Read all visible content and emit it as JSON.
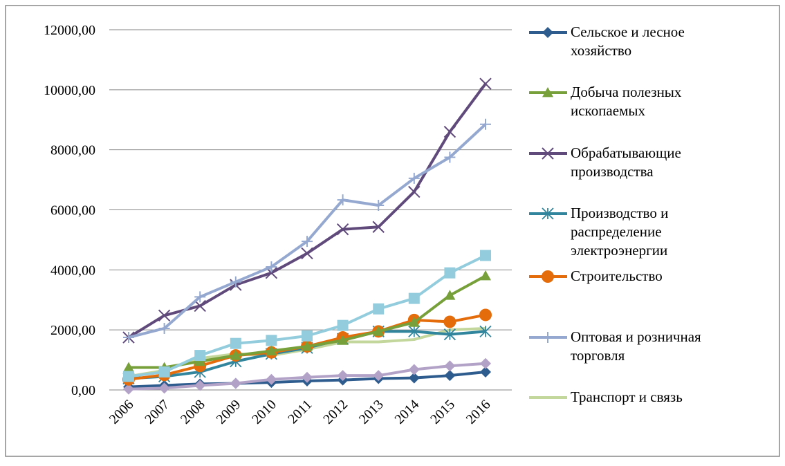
{
  "chart_data": {
    "type": "line",
    "categories": [
      "2006",
      "2007",
      "2008",
      "2009",
      "2010",
      "2011",
      "2012",
      "2013",
      "2014",
      "2015",
      "2016"
    ],
    "ylim": [
      0,
      12000
    ],
    "yticks": [
      {
        "value": 0,
        "label": "0,00"
      },
      {
        "value": 2000,
        "label": "2000,00"
      },
      {
        "value": 4000,
        "label": "4000,00"
      },
      {
        "value": 6000,
        "label": "6000,00"
      },
      {
        "value": 8000,
        "label": "8000,00"
      },
      {
        "value": 10000,
        "label": "10000,00"
      },
      {
        "value": 12000,
        "label": "12000,00"
      }
    ],
    "grid": true,
    "legend": "right",
    "series": [
      {
        "name": "Сельское и лесное хозяйство",
        "color": "#2e5c8e",
        "marker": "diamond",
        "values": [
          100,
          150,
          200,
          220,
          250,
          300,
          330,
          380,
          400,
          480,
          600
        ]
      },
      {
        "name": "Добыча полезных ископаемых",
        "color": "#77a03a",
        "marker": "triangle",
        "values": [
          750,
          750,
          950,
          1150,
          1300,
          1450,
          1650,
          1950,
          2250,
          3150,
          3800
        ]
      },
      {
        "name": "Обрабатывающие производства",
        "color": "#604a7b",
        "marker": "x",
        "values": [
          1750,
          2480,
          2800,
          3500,
          3900,
          4550,
          5350,
          5430,
          6600,
          8600,
          10200
        ]
      },
      {
        "name": "Производство и распределение электроэнергии",
        "color": "#31859c",
        "marker": "star",
        "values": [
          380,
          450,
          600,
          950,
          1200,
          1400,
          1700,
          1950,
          1950,
          1850,
          1950
        ]
      },
      {
        "name": "Строительство",
        "color": "#e46c0a",
        "marker": "circle",
        "values": [
          350,
          500,
          800,
          1150,
          1250,
          1450,
          1750,
          1950,
          2330,
          2270,
          2500
        ]
      },
      {
        "name": "Оптовая и розничная торговля",
        "color": "#95a9d0",
        "marker": "plus",
        "values": [
          1750,
          2050,
          3100,
          3600,
          4100,
          4950,
          6330,
          6150,
          7050,
          7750,
          8850
        ]
      },
      {
        "name": "Транспорт и связь",
        "color": "#c3d69b",
        "marker": "none",
        "values": [
          450,
          650,
          1050,
          1200,
          1150,
          1350,
          1600,
          1600,
          1680,
          2000,
          2050
        ]
      },
      {
        "color": "#93cddd",
        "marker": "square",
        "values": [
          450,
          600,
          1150,
          1550,
          1650,
          1800,
          2150,
          2700,
          3050,
          3900,
          4480
        ]
      },
      {
        "color": "#b3a2c7",
        "marker": "diamond",
        "values": [
          30,
          60,
          150,
          220,
          350,
          420,
          480,
          480,
          680,
          800,
          880
        ]
      }
    ]
  }
}
